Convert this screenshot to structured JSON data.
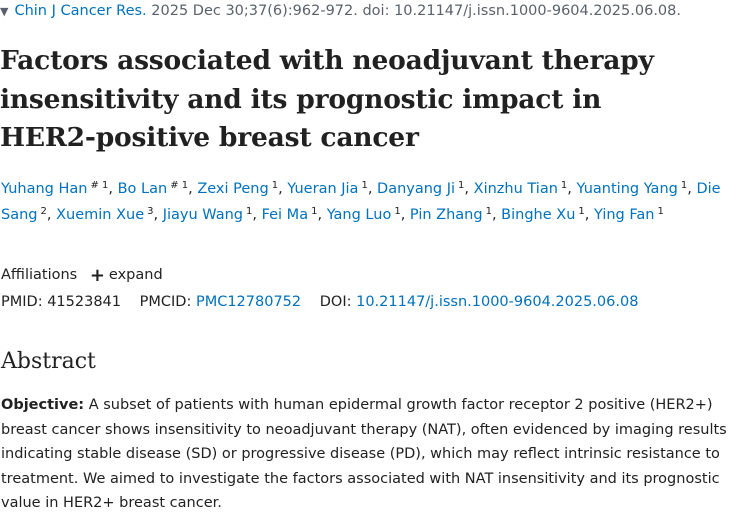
{
  "citation": {
    "journal": "Chin J Cancer Res.",
    "details": "2025 Dec 30;37(6):962-972. doi: 10.21147/j.issn.1000-9604.2025.06.08."
  },
  "title": "Factors associated with neoadjuvant therapy insensitivity and its prognostic impact in HER2-positive breast cancer",
  "authors": [
    {
      "name": "Yuhang Han",
      "marks": "# 1"
    },
    {
      "name": "Bo Lan",
      "marks": "# 1"
    },
    {
      "name": "Zexi Peng",
      "marks": "1"
    },
    {
      "name": "Yueran Jia",
      "marks": "1"
    },
    {
      "name": "Danyang Ji",
      "marks": "1"
    },
    {
      "name": "Xinzhu Tian",
      "marks": "1"
    },
    {
      "name": "Yuanting Yang",
      "marks": "1"
    },
    {
      "name": "Die Sang",
      "marks": "2"
    },
    {
      "name": "Xuemin Xue",
      "marks": "3"
    },
    {
      "name": "Jiayu Wang",
      "marks": "1"
    },
    {
      "name": "Fei Ma",
      "marks": "1"
    },
    {
      "name": "Yang Luo",
      "marks": "1"
    },
    {
      "name": "Pin Zhang",
      "marks": "1"
    },
    {
      "name": "Binghe Xu",
      "marks": "1"
    },
    {
      "name": "Ying Fan",
      "marks": "1"
    }
  ],
  "affiliations": {
    "label": "Affiliations",
    "expand_label": "expand"
  },
  "identifiers": {
    "pmid_label": "PMID:",
    "pmid": "41523841",
    "pmcid_label": "PMCID:",
    "pmcid": "PMC12780752",
    "doi_label": "DOI:",
    "doi": "10.21147/j.issn.1000-9604.2025.06.08"
  },
  "abstract": {
    "heading": "Abstract",
    "objective_label": "Objective:",
    "objective_text": "A subset of patients with human epidermal growth factor receptor 2 positive (HER2+) breast cancer shows insensitivity to neoadjuvant therapy (NAT), often evidenced by imaging results indicating stable disease (SD) or progressive disease (PD), which may reflect intrinsic resistance to treatment. We aimed to investigate the factors associated with NAT insensitivity and its prognostic value in HER2+ breast cancer."
  },
  "colors": {
    "link": "#0071bc",
    "text": "#212121",
    "muted": "#5b616b"
  },
  "icons": {
    "citation_caret": "caret-down-icon",
    "expand": "plus-icon"
  }
}
